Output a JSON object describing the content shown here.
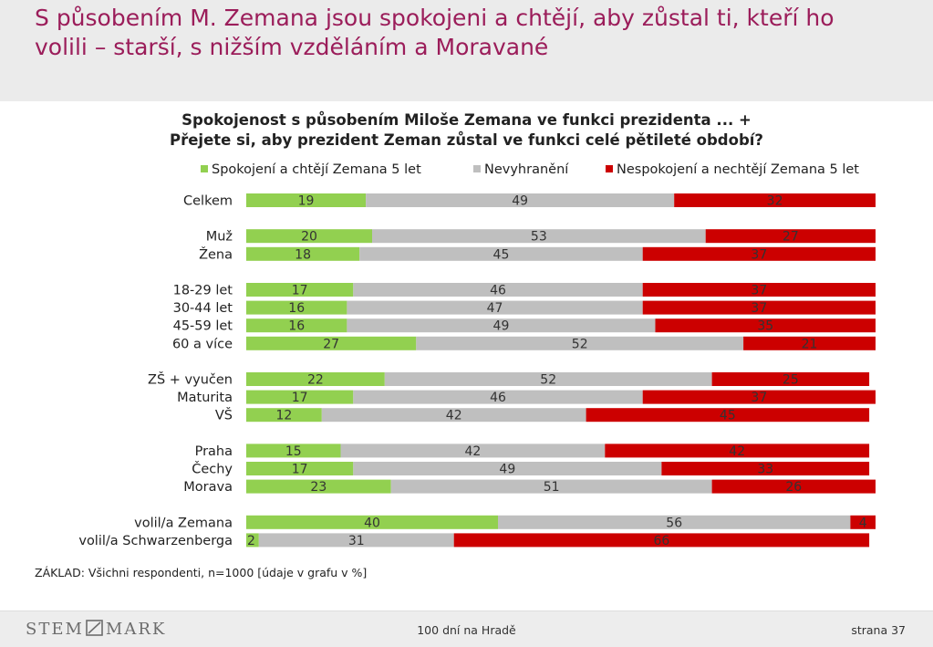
{
  "slide": {
    "title_line1": "S působením M. Zemana jsou spokojeni a chtějí, aby zůstal ti, kteří ho",
    "title_line2": "volili – starší, s nižším vzděláním a Moravané"
  },
  "chart_data": {
    "type": "bar",
    "orientation": "horizontal",
    "stacked": true,
    "title_line1": "Spokojenost s působením Miloše Zemana ve funkci prezidenta ... +",
    "title_line2": "Přejete si, aby prezident Zeman zůstal ve funkci celé pětileté období?",
    "legend_position": "top",
    "xlim": [
      0,
      100
    ],
    "categories": [
      "Celkem",
      "Muž",
      "Žena",
      "18-29 let",
      "30-44 let",
      "45-59 let",
      "60 a více",
      "ZŠ + vyučen",
      "Maturita",
      "VŠ",
      "Praha",
      "Čechy",
      "Morava",
      "volil/a Zemana",
      "volil/a Schwarzenberga"
    ],
    "groups": [
      [
        0
      ],
      [
        1,
        2
      ],
      [
        3,
        4,
        5,
        6
      ],
      [
        7,
        8,
        9
      ],
      [
        10,
        11,
        12
      ],
      [
        13,
        14
      ]
    ],
    "series": [
      {
        "name": "Spokojení a chtějí Zemana 5 let",
        "color": "#92d050",
        "values": [
          19,
          20,
          18,
          17,
          16,
          16,
          27,
          22,
          17,
          12,
          15,
          17,
          23,
          40,
          2
        ]
      },
      {
        "name": "Nevyhranění",
        "color": "#bfbfbf",
        "values": [
          49,
          53,
          45,
          46,
          47,
          49,
          52,
          52,
          46,
          42,
          42,
          49,
          51,
          56,
          31
        ]
      },
      {
        "name": "Nespokojení a nechtějí Zemana 5 let",
        "color": "#cc0000",
        "values": [
          32,
          27,
          37,
          37,
          37,
          35,
          21,
          25,
          37,
          45,
          42,
          33,
          26,
          4,
          66
        ]
      }
    ],
    "base_note": "ZÁKLAD: Všichni respondenti, n=1000 [údaje v grafu v %]"
  },
  "footer": {
    "logo": "STEM/MARK",
    "logo_left": "STEM",
    "logo_right": "MARK",
    "center": "100 dní na Hradě",
    "page": "strana 37"
  }
}
